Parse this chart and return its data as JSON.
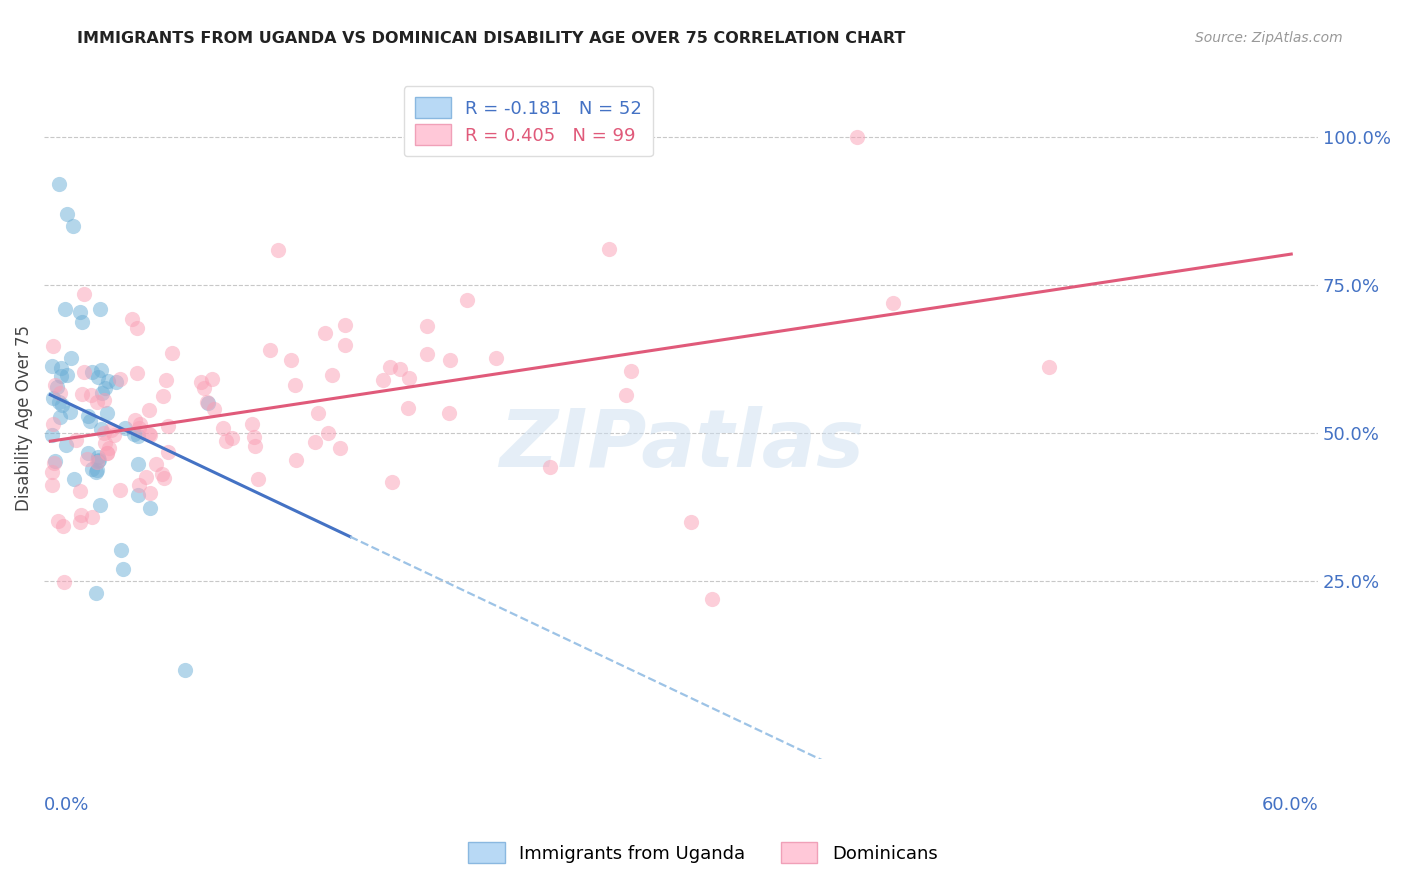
{
  "title": "IMMIGRANTS FROM UGANDA VS DOMINICAN DISABILITY AGE OVER 75 CORRELATION CHART",
  "source": "Source: ZipAtlas.com",
  "ylabel": "Disability Age Over 75",
  "ytick_labels": [
    "100.0%",
    "75.0%",
    "50.0%",
    "25.0%"
  ],
  "ytick_values": [
    1.0,
    0.75,
    0.5,
    0.25
  ],
  "xlim": [
    0.0,
    0.6
  ],
  "ylim": [
    -0.05,
    1.1
  ],
  "uganda_color": "#6baed6",
  "dominican_color": "#fa9fb5",
  "uganda_R": -0.181,
  "uganda_N": 52,
  "dominican_R": 0.405,
  "dominican_N": 99,
  "watermark": "ZIPatlas",
  "background_color": "#ffffff",
  "grid_color": "#c8c8c8",
  "axis_label_color": "#4472c4",
  "title_color": "#222222",
  "title_fontsize": 11.5,
  "source_fontsize": 10,
  "tick_fontsize": 13,
  "ylabel_fontsize": 12,
  "legend_fontsize": 13
}
